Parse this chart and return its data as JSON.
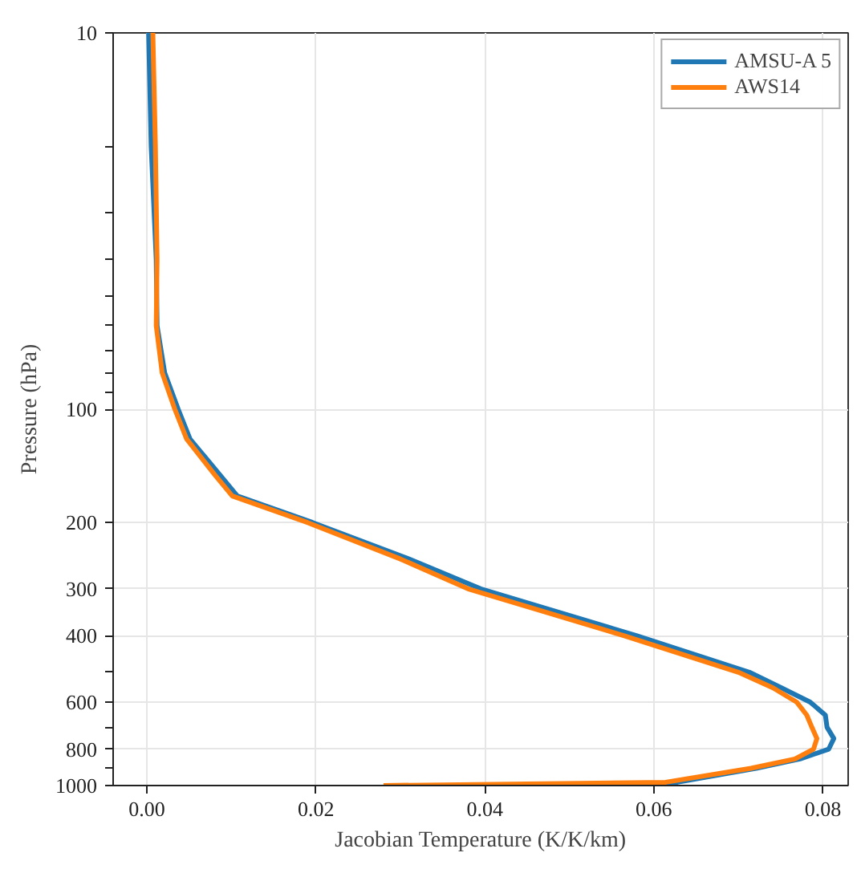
{
  "chart_data": {
    "type": "line",
    "xlabel": "Jacobian Temperature (K/K/km)",
    "ylabel": "Pressure (hPa)",
    "log": "y",
    "xlim": [
      -0.004,
      0.083
    ],
    "ylim": [
      1000,
      10
    ],
    "xticks": [
      {
        "value": 0,
        "label": "0.00"
      },
      {
        "value": 0.02,
        "label": "0.02"
      },
      {
        "value": 0.04,
        "label": "0.04"
      },
      {
        "value": 0.06,
        "label": "0.06"
      },
      {
        "value": 0.08,
        "label": "0.08"
      }
    ],
    "yticks": [
      10,
      {
        "value": 20,
        "label": null
      },
      {
        "value": 30,
        "label": null
      },
      {
        "value": 40,
        "label": null
      },
      {
        "value": 50,
        "label": null
      },
      {
        "value": 60,
        "label": null
      },
      {
        "value": 70,
        "label": null
      },
      {
        "value": 80,
        "label": null
      },
      {
        "value": 90,
        "label": null
      },
      100,
      200,
      300,
      400,
      {
        "value": 500,
        "label": null
      },
      600,
      {
        "value": 700,
        "label": null
      },
      800,
      {
        "value": 900,
        "label": null
      },
      1000
    ],
    "grid": true,
    "legend": "top right",
    "line_style": "solid",
    "series": [
      {
        "name": "AMSU-A 5",
        "color": "#1f77b4",
        "x": [
          0.0002,
          0.0005,
          0.0011,
          0.0012,
          0.0021,
          0.0037,
          0.0051,
          0.0087,
          0.0107,
          0.0196,
          0.031,
          0.0395,
          0.058,
          0.0713,
          0.0751,
          0.0785,
          0.0803,
          0.0805,
          0.0813,
          0.0807,
          0.0773,
          0.0721,
          0.0628,
          0.0615
        ],
        "values": [
          10,
          20,
          40,
          60,
          80,
          100,
          120,
          150,
          170,
          200,
          250,
          300,
          400,
          500,
          550,
          600,
          650,
          700,
          750,
          800,
          850,
          900,
          980,
          1000
        ]
      },
      {
        "name": "AWS14",
        "color": "#ff7f0e",
        "x": [
          0.0007,
          0.001,
          0.0012,
          0.0011,
          0.0018,
          0.0033,
          0.0047,
          0.0081,
          0.0101,
          0.019,
          0.03,
          0.038,
          0.0565,
          0.07,
          0.0741,
          0.0769,
          0.0781,
          0.0787,
          0.0793,
          0.0789,
          0.0767,
          0.0715,
          0.0614,
          0.028
        ],
        "values": [
          10,
          20,
          40,
          60,
          80,
          100,
          120,
          150,
          170,
          200,
          250,
          300,
          400,
          500,
          550,
          600,
          650,
          700,
          750,
          800,
          850,
          900,
          980,
          1000
        ]
      }
    ]
  }
}
